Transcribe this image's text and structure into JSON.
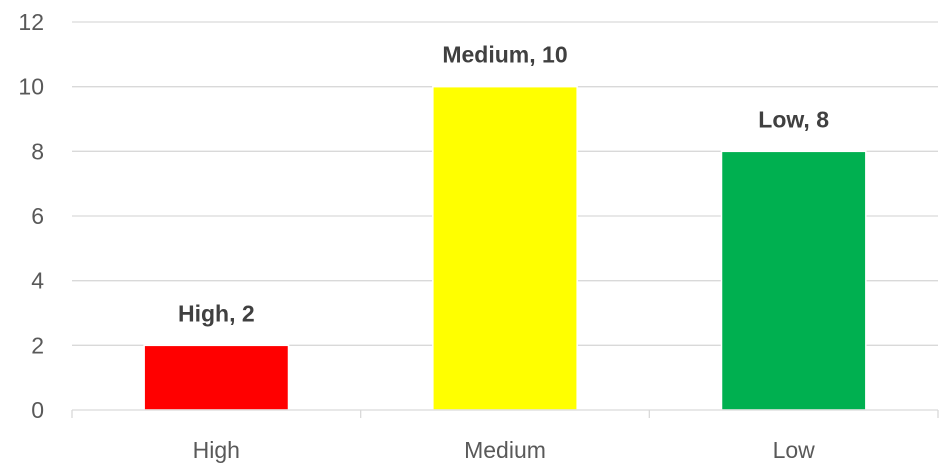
{
  "chart_data": {
    "type": "bar",
    "title": "",
    "xlabel": "",
    "ylabel": "",
    "categories": [
      "High",
      "Medium",
      "Low"
    ],
    "values": [
      2,
      10,
      8
    ],
    "bar_colors": [
      "#ff0000",
      "#ffff00",
      "#00b050"
    ],
    "data_labels": [
      "High, 2",
      "Medium, 10",
      "Low, 8"
    ],
    "ylim": [
      0,
      12
    ],
    "yticks": [
      0,
      2,
      4,
      6,
      8,
      10,
      12
    ],
    "grid": true,
    "legend": "none"
  }
}
